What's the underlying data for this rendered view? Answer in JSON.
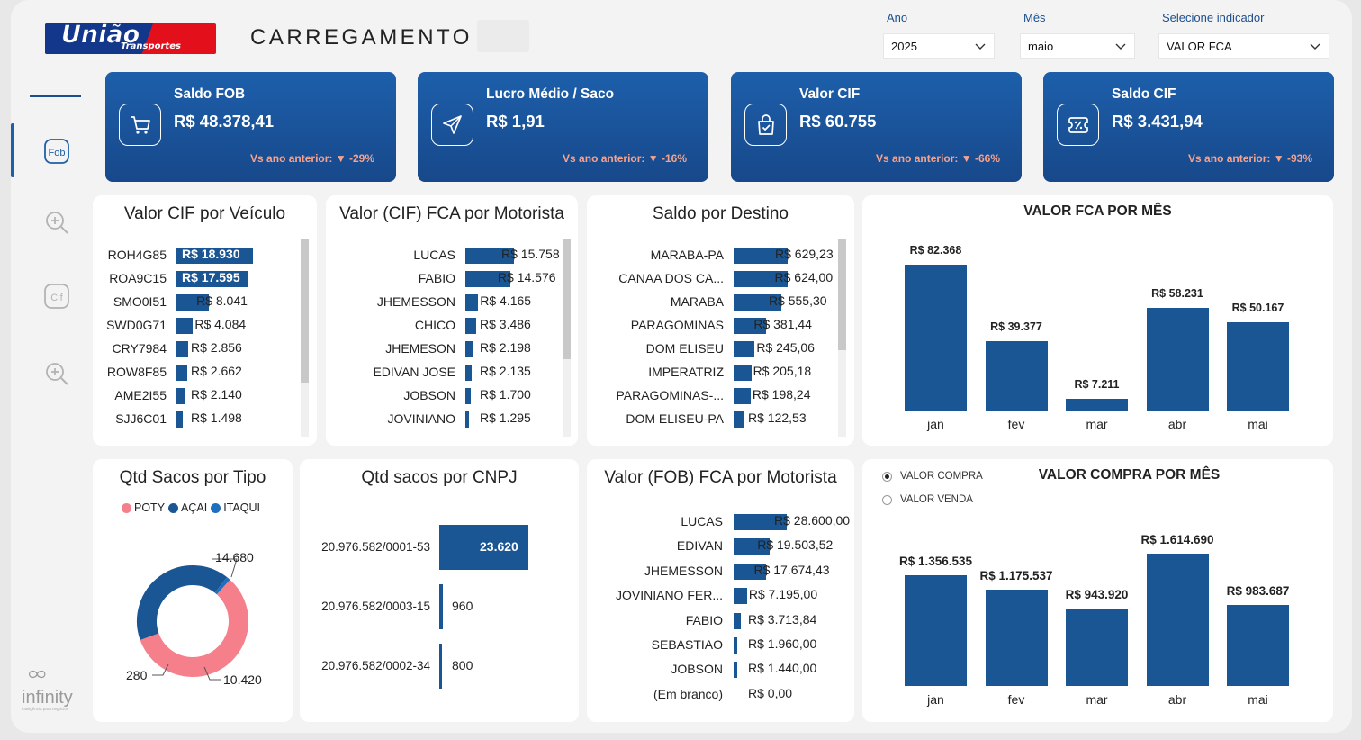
{
  "header": {
    "logo_text": "União",
    "logo_subtext": "Transportes",
    "title": "CARREGAMENTO"
  },
  "filters": [
    {
      "label": "Ano",
      "value": "2025"
    },
    {
      "label": "Mês",
      "value": "maio"
    },
    {
      "label": "Selecione indicador",
      "value": "VALOR FCA"
    }
  ],
  "sidebar": {
    "items": [
      {
        "icon": "fob-icon",
        "active": true
      },
      {
        "icon": "zoom-in-icon",
        "active": false
      },
      {
        "icon": "cif-icon",
        "active": false
      },
      {
        "icon": "zoom-in-icon",
        "active": false
      }
    ],
    "brand": "infinity",
    "brand_tagline": "inteligência para negócios"
  },
  "kpis": [
    {
      "label": "Saldo FOB",
      "value": "R$ 48.378,41",
      "comparison": "Vs ano anterior:",
      "delta": "-29%",
      "icon": "cart-icon"
    },
    {
      "label": "Lucro Médio / Saco",
      "value": "R$ 1,91",
      "comparison": "Vs ano anterior:",
      "delta": "-16%",
      "icon": "send-icon"
    },
    {
      "label": "Valor CIF",
      "value": "R$ 60.755",
      "comparison": "Vs ano anterior:",
      "delta": "-66%",
      "icon": "shopping-bag-check-icon"
    },
    {
      "label": "Saldo CIF",
      "value": "R$ 3.431,94",
      "comparison": "Vs ano anterior:",
      "delta": "-93%",
      "icon": "ticket-percent-icon"
    }
  ],
  "colors": {
    "primary": "#1a5694",
    "kpi_top": "#1d5fab",
    "kpi_bottom": "#17488a",
    "delta": "#f5a38e",
    "poty": "#f57f8a",
    "acai": "#1a5694",
    "itaqui": "#1f6fbf"
  },
  "chart_data": [
    {
      "id": "cif_veiculo",
      "type": "bar",
      "orientation": "horizontal",
      "title": "Valor CIF por Veículo",
      "categories": [
        "ROH4G85",
        "ROA9C15",
        "SMO0I51",
        "SWD0G71",
        "CRY7984",
        "ROW8F85",
        "AME2I55",
        "SJJ6C01"
      ],
      "values": [
        18930,
        17595,
        8041,
        4084,
        2856,
        2662,
        2140,
        1498
      ],
      "labels": [
        "R$ 18.930",
        "R$ 17.595",
        "R$ 8.041",
        "R$ 4.084",
        "R$ 2.856",
        "R$ 2.662",
        "R$ 2.140",
        "R$ 1.498"
      ]
    },
    {
      "id": "cif_motorista",
      "type": "bar",
      "orientation": "horizontal",
      "title": "Valor (CIF) FCA por Motorista",
      "categories": [
        "LUCAS",
        "FABIO",
        "JHEMESSON",
        "CHICO",
        "JHEMESON",
        "EDIVAN JOSE",
        "JOBSON",
        "JOVINIANO"
      ],
      "values": [
        15758,
        14576,
        4165,
        3486,
        2198,
        2135,
        1700,
        1295
      ],
      "labels": [
        "R$ 15.758",
        "R$ 14.576",
        "R$ 4.165",
        "R$ 3.486",
        "R$ 2.198",
        "R$ 2.135",
        "R$ 1.700",
        "R$ 1.295"
      ]
    },
    {
      "id": "saldo_destino",
      "type": "bar",
      "orientation": "horizontal",
      "title": "Saldo por Destino",
      "categories": [
        "MARABA-PA",
        "CANAA DOS CA...",
        "MARABA",
        "PARAGOMINAS",
        "DOM ELISEU",
        "IMPERATRIZ",
        "PARAGOMINAS-...",
        "DOM ELISEU-PA"
      ],
      "values": [
        629.23,
        624.0,
        555.3,
        381.44,
        245.06,
        205.18,
        198.24,
        122.53
      ],
      "labels": [
        "R$ 629,23",
        "R$ 624,00",
        "R$ 555,30",
        "R$ 381,44",
        "R$ 245,06",
        "R$ 205,18",
        "R$ 198,24",
        "R$ 122,53"
      ]
    },
    {
      "id": "fca_mes",
      "type": "bar",
      "orientation": "vertical",
      "title": "VALOR FCA POR MÊS",
      "categories": [
        "jan",
        "fev",
        "mar",
        "abr",
        "mai"
      ],
      "values": [
        82368,
        39377,
        7211,
        58231,
        50167
      ],
      "labels": [
        "R$ 82.368",
        "R$ 39.377",
        "R$ 7.211",
        "R$ 58.231",
        "R$ 50.167"
      ]
    },
    {
      "id": "sacos_tipo",
      "type": "pie",
      "donut": true,
      "title": "Qtd Sacos por Tipo",
      "categories": [
        "POTY",
        "AÇAI",
        "ITAQUI"
      ],
      "values": [
        14680,
        10420,
        280
      ],
      "labels": [
        "14.680",
        "10.420",
        "280"
      ]
    },
    {
      "id": "sacos_cnpj",
      "type": "bar",
      "orientation": "horizontal",
      "title": "Qtd sacos por CNPJ",
      "categories": [
        "20.976.582/0001-53",
        "20.976.582/0003-15",
        "20.976.582/0002-34"
      ],
      "values": [
        23620,
        960,
        800
      ],
      "labels": [
        "23.620",
        "960",
        "800"
      ]
    },
    {
      "id": "fob_motorista",
      "type": "bar",
      "orientation": "horizontal",
      "title": "Valor (FOB) FCA por Motorista",
      "categories": [
        "LUCAS",
        "EDIVAN",
        "JHEMESSON",
        "JOVINIANO FER...",
        "FABIO",
        "SEBASTIAO",
        "JOBSON",
        "(Em branco)"
      ],
      "values": [
        28600.0,
        19503.52,
        17674.43,
        7195.0,
        3713.84,
        1960.0,
        1440.0,
        0
      ],
      "labels": [
        "R$ 28.600,00",
        "R$ 19.503,52",
        "R$ 17.674,43",
        "R$ 7.195,00",
        "R$ 3.713,84",
        "R$ 1.960,00",
        "R$ 1.440,00",
        "R$ 0,00"
      ]
    },
    {
      "id": "compra_mes",
      "type": "bar",
      "orientation": "vertical",
      "title": "VALOR COMPRA POR MÊS",
      "categories": [
        "jan",
        "fev",
        "mar",
        "abr",
        "mai"
      ],
      "values": [
        1356535,
        1175537,
        943920,
        1614690,
        983687
      ],
      "labels": [
        "R$ 1.356.535",
        "R$ 1.175.537",
        "R$ 943.920",
        "R$ 1.614.690",
        "R$ 983.687"
      ]
    }
  ],
  "compra_options": [
    {
      "label": "VALOR COMPRA",
      "selected": true
    },
    {
      "label": "VALOR VENDA",
      "selected": false
    }
  ]
}
